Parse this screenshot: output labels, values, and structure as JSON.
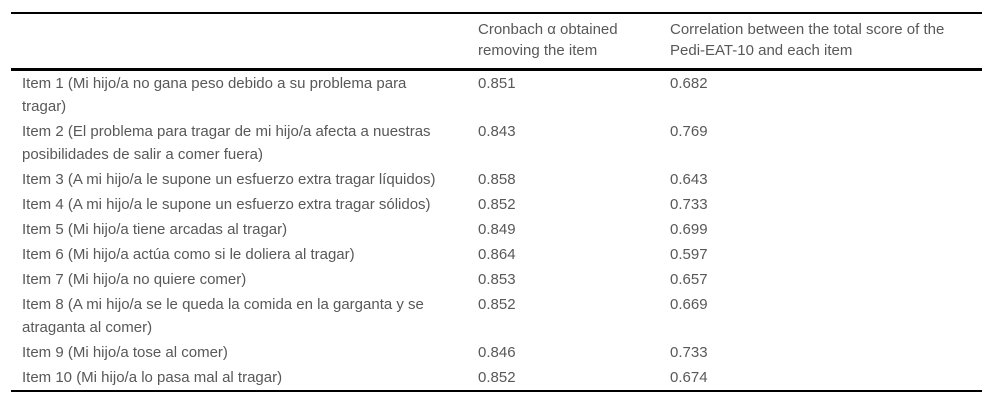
{
  "table": {
    "headers": {
      "item": "",
      "cronbach": "Cronbach α obtained removing the item",
      "correlation": "Correlation between the total score of the Pedi-EAT-10 and each item"
    },
    "rows": [
      {
        "item": "Item 1 (Mi hijo/a no gana peso debido a su problema para tragar)",
        "cronbach": "0.851",
        "correlation": "0.682"
      },
      {
        "item": "Item 2 (El problema para tragar de mi hijo/a afecta a nuestras posibilidades de salir a comer fuera)",
        "cronbach": "0.843",
        "correlation": "0.769"
      },
      {
        "item": "Item 3 (A mi hijo/a le supone un esfuerzo extra tragar líquidos)",
        "cronbach": "0.858",
        "correlation": "0.643"
      },
      {
        "item": "Item 4 (A mi hijo/a le supone un esfuerzo extra tragar sólidos)",
        "cronbach": "0.852",
        "correlation": "0.733"
      },
      {
        "item": "Item 5 (Mi hijo/a tiene arcadas al tragar)",
        "cronbach": "0.849",
        "correlation": "0.699"
      },
      {
        "item": "Item 6 (Mi hijo/a actúa como si le doliera al tragar)",
        "cronbach": "0.864",
        "correlation": "0.597"
      },
      {
        "item": "Item 7 (Mi hijo/a no quiere comer)",
        "cronbach": "0.853",
        "correlation": "0.657"
      },
      {
        "item": "Item 8 (A mi hijo/a se le queda la comida en la garganta y se atraganta al comer)",
        "cronbach": "0.852",
        "correlation": "0.669"
      },
      {
        "item": "Item 9 (Mi hijo/a tose al comer)",
        "cronbach": "0.846",
        "correlation": "0.733"
      },
      {
        "item": "Item 10 (Mi hijo/a lo pasa mal al tragar)",
        "cronbach": "0.852",
        "correlation": "0.674"
      }
    ]
  },
  "colors": {
    "text": "#585858",
    "border": "#000000",
    "background": "#ffffff"
  }
}
